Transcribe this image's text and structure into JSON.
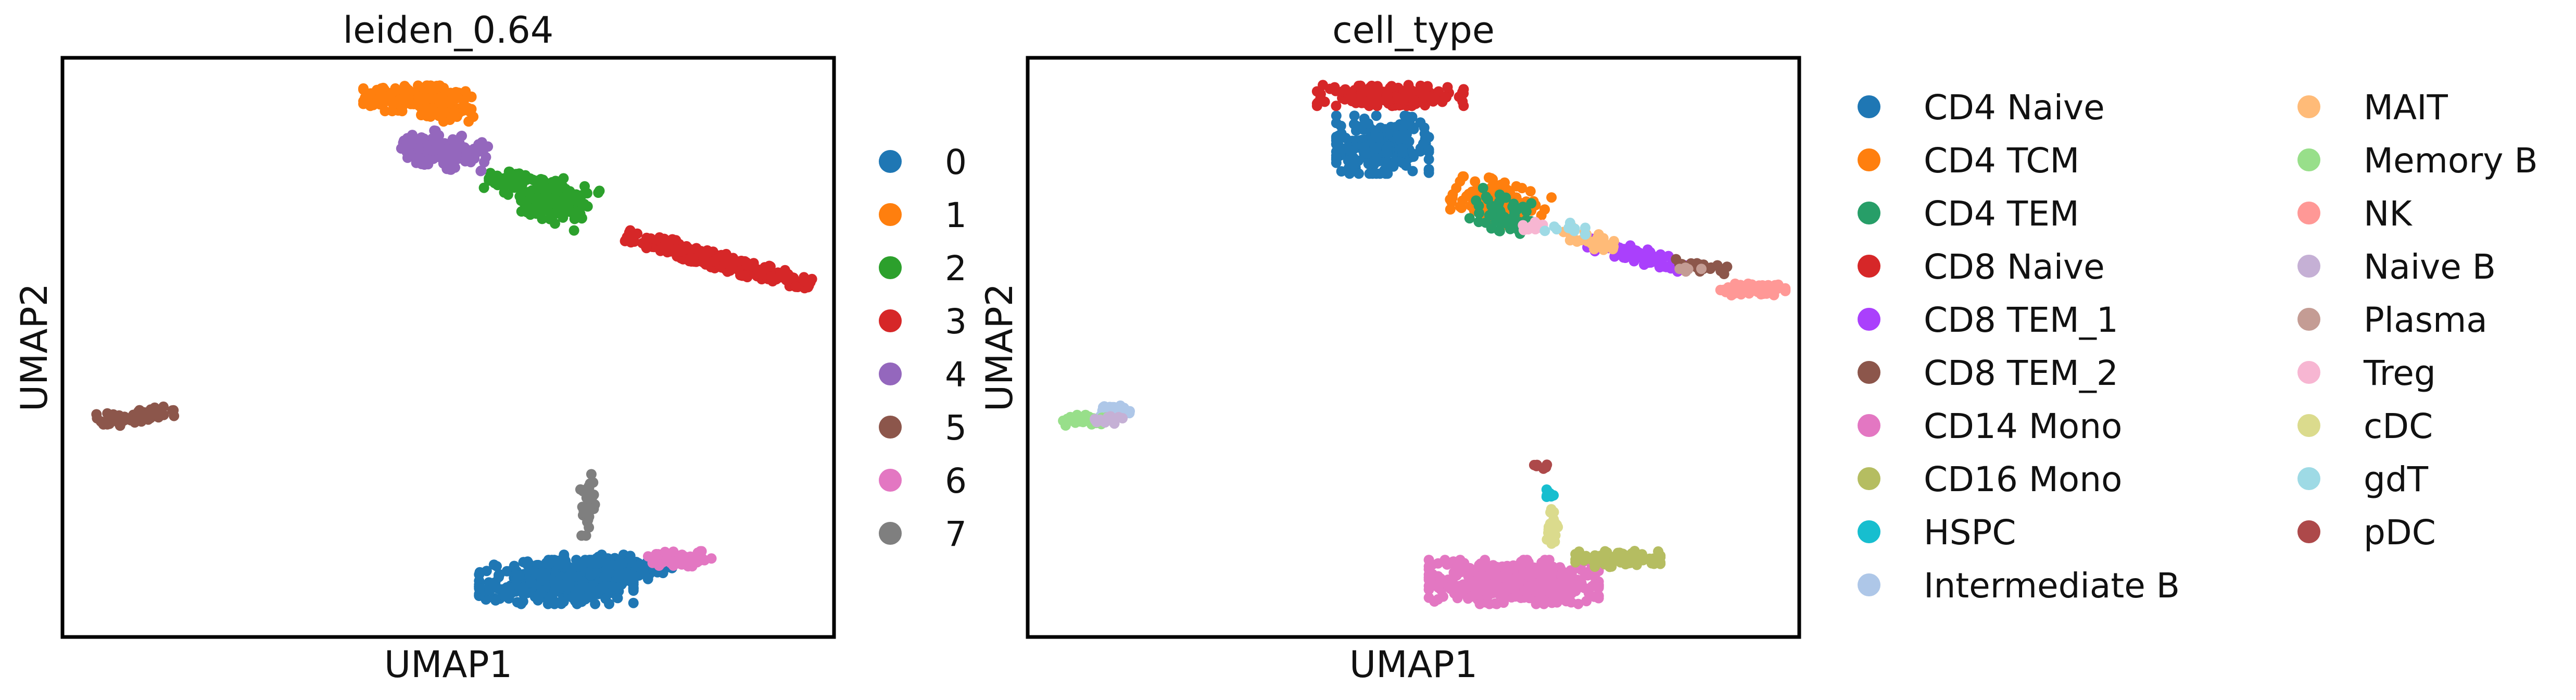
{
  "chart_data": [
    {
      "type": "scatter",
      "title": "leiden_0.64",
      "xlabel": "UMAP1",
      "ylabel": "UMAP2",
      "xlim": [
        0,
        10
      ],
      "ylim": [
        0,
        10
      ],
      "grid": false,
      "legend_position": "right",
      "series": [
        {
          "name": "0",
          "color": "#1f77b4",
          "clusters": [
            {
              "cx": 6.4,
              "cy": 0.95,
              "rx": 1.0,
              "ry": 0.38,
              "n": 420
            },
            {
              "cx": 7.2,
              "cy": 1.2,
              "rx": 0.7,
              "ry": 0.22,
              "n": 140
            }
          ]
        },
        {
          "name": "1",
          "color": "#ff7f0e",
          "clusters": [
            {
              "cx": 4.6,
              "cy": 9.3,
              "rx": 0.7,
              "ry": 0.22,
              "n": 190
            },
            {
              "cx": 5.0,
              "cy": 9.05,
              "rx": 0.35,
              "ry": 0.15,
              "n": 40
            }
          ]
        },
        {
          "name": "2",
          "color": "#2ca02c",
          "clusters": [
            {
              "cx": 6.3,
              "cy": 7.6,
              "rx": 0.55,
              "ry": 0.38,
              "n": 190,
              "tilt": -0.45
            },
            {
              "cx": 5.7,
              "cy": 7.9,
              "rx": 0.3,
              "ry": 0.15,
              "n": 35
            }
          ]
        },
        {
          "name": "3",
          "color": "#d62728",
          "clusters": [
            {
              "cx": 8.5,
              "cy": 6.5,
              "rx": 1.25,
              "ry": 0.14,
              "n": 300,
              "tilt": -0.35
            }
          ]
        },
        {
          "name": "4",
          "color": "#9467bd",
          "clusters": [
            {
              "cx": 4.95,
              "cy": 8.4,
              "rx": 0.55,
              "ry": 0.3,
              "n": 150,
              "tilt": -0.25
            }
          ]
        },
        {
          "name": "5",
          "color": "#8c564b",
          "clusters": [
            {
              "cx": 0.95,
              "cy": 3.8,
              "rx": 0.5,
              "ry": 0.12,
              "n": 80,
              "tilt": 0.15
            }
          ]
        },
        {
          "name": "6",
          "color": "#e377c2",
          "clusters": [
            {
              "cx": 8.0,
              "cy": 1.35,
              "rx": 0.42,
              "ry": 0.13,
              "n": 55
            }
          ]
        },
        {
          "name": "7",
          "color": "#7f7f7f",
          "clusters": [
            {
              "cx": 6.8,
              "cy": 2.3,
              "rx": 0.1,
              "ry": 0.55,
              "n": 35
            }
          ]
        }
      ]
    },
    {
      "type": "scatter",
      "title": "cell_type",
      "xlabel": "UMAP1",
      "ylabel": "UMAP2",
      "xlim": [
        0,
        10
      ],
      "ylim": [
        0,
        10
      ],
      "grid": false,
      "legend_position": "right",
      "legend_columns": 2,
      "series": [
        {
          "name": "CD4 Naive",
          "color": "#1f77b4",
          "clusters": [
            {
              "cx": 4.6,
              "cy": 8.5,
              "rx": 0.6,
              "ry": 0.5,
              "n": 240
            }
          ]
        },
        {
          "name": "CD4 TCM",
          "color": "#ff7f0e",
          "clusters": [
            {
              "cx": 6.1,
              "cy": 7.5,
              "rx": 0.6,
              "ry": 0.35,
              "n": 150,
              "tilt": -0.4
            }
          ]
        },
        {
          "name": "CD4 TEM",
          "color": "#279e68",
          "clusters": [
            {
              "cx": 6.2,
              "cy": 7.3,
              "rx": 0.45,
              "ry": 0.3,
              "n": 60,
              "tilt": -0.4
            }
          ]
        },
        {
          "name": "CD8 Naive",
          "color": "#d62728",
          "clusters": [
            {
              "cx": 4.7,
              "cy": 9.35,
              "rx": 0.95,
              "ry": 0.18,
              "n": 210
            }
          ]
        },
        {
          "name": "CD8 TEM_1",
          "color": "#aa40fc",
          "clusters": [
            {
              "cx": 7.9,
              "cy": 6.6,
              "rx": 0.65,
              "ry": 0.13,
              "n": 80,
              "tilt": -0.35
            }
          ]
        },
        {
          "name": "CD8 TEM_2",
          "color": "#8c564b",
          "clusters": [
            {
              "cx": 8.7,
              "cy": 6.4,
              "rx": 0.35,
              "ry": 0.1,
              "n": 25,
              "tilt": -0.3
            }
          ]
        },
        {
          "name": "CD14 Mono",
          "color": "#e377c2",
          "clusters": [
            {
              "cx": 6.3,
              "cy": 0.95,
              "rx": 1.1,
              "ry": 0.38,
              "n": 480
            }
          ]
        },
        {
          "name": "CD16 Mono",
          "color": "#b5bd61",
          "clusters": [
            {
              "cx": 7.65,
              "cy": 1.35,
              "rx": 0.55,
              "ry": 0.14,
              "n": 90
            }
          ]
        },
        {
          "name": "HSPC",
          "color": "#17becf",
          "clusters": [
            {
              "cx": 6.75,
              "cy": 2.5,
              "rx": 0.07,
              "ry": 0.1,
              "n": 8
            }
          ]
        },
        {
          "name": "Intermediate B",
          "color": "#aec7e8",
          "clusters": [
            {
              "cx": 1.1,
              "cy": 3.9,
              "rx": 0.3,
              "ry": 0.12,
              "n": 35
            }
          ]
        },
        {
          "name": "MAIT",
          "color": "#ffbb78",
          "clusters": [
            {
              "cx": 7.3,
              "cy": 6.85,
              "rx": 0.5,
              "ry": 0.13,
              "n": 30,
              "tilt": -0.35
            }
          ]
        },
        {
          "name": "Memory B",
          "color": "#98df8a",
          "clusters": [
            {
              "cx": 0.75,
              "cy": 3.75,
              "rx": 0.3,
              "ry": 0.1,
              "n": 40
            }
          ]
        },
        {
          "name": "NK",
          "color": "#ff9896",
          "clusters": [
            {
              "cx": 9.4,
              "cy": 6.0,
              "rx": 0.42,
              "ry": 0.1,
              "n": 70
            }
          ]
        },
        {
          "name": "Naive B",
          "color": "#c5b0d5",
          "clusters": [
            {
              "cx": 1.05,
              "cy": 3.75,
              "rx": 0.25,
              "ry": 0.08,
              "n": 15
            }
          ]
        },
        {
          "name": "Plasma",
          "color": "#c49c94",
          "clusters": [
            {
              "cx": 8.6,
              "cy": 6.35,
              "rx": 0.15,
              "ry": 0.06,
              "n": 6
            }
          ]
        },
        {
          "name": "Treg",
          "color": "#f7b6d2",
          "clusters": [
            {
              "cx": 6.6,
              "cy": 7.1,
              "rx": 0.3,
              "ry": 0.1,
              "n": 10
            }
          ]
        },
        {
          "name": "cDC",
          "color": "#dbdb8d",
          "clusters": [
            {
              "cx": 6.8,
              "cy": 1.85,
              "rx": 0.08,
              "ry": 0.4,
              "n": 25
            }
          ]
        },
        {
          "name": "gdT",
          "color": "#9edae5",
          "clusters": [
            {
              "cx": 7.0,
              "cy": 7.05,
              "rx": 0.3,
              "ry": 0.1,
              "n": 10
            }
          ]
        },
        {
          "name": "pDC",
          "color": "#ad494a",
          "clusters": [
            {
              "cx": 6.65,
              "cy": 2.95,
              "rx": 0.1,
              "ry": 0.05,
              "n": 6
            }
          ]
        }
      ]
    }
  ]
}
